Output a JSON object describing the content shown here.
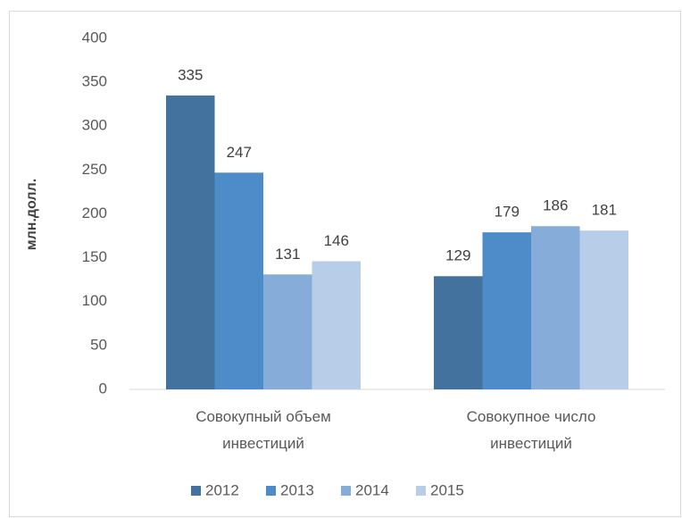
{
  "chart_data": {
    "type": "bar",
    "y_label": "млн.долл.",
    "categories": [
      "Совокупный объем инвестиций",
      "Совокупное число инвестиций"
    ],
    "series": [
      {
        "name": "2012",
        "color": "#44729f",
        "values": [
          335,
          129
        ]
      },
      {
        "name": "2013",
        "color": "#4e8bc9",
        "values": [
          247,
          179
        ]
      },
      {
        "name": "2014",
        "color": "#86acd9",
        "values": [
          131,
          186
        ]
      },
      {
        "name": "2015",
        "color": "#b8cde8",
        "values": [
          146,
          181
        ]
      }
    ],
    "ylim": [
      0,
      400
    ],
    "yticks": [
      0,
      50,
      100,
      150,
      200,
      250,
      300,
      350,
      400
    ],
    "legend": "bottom"
  }
}
